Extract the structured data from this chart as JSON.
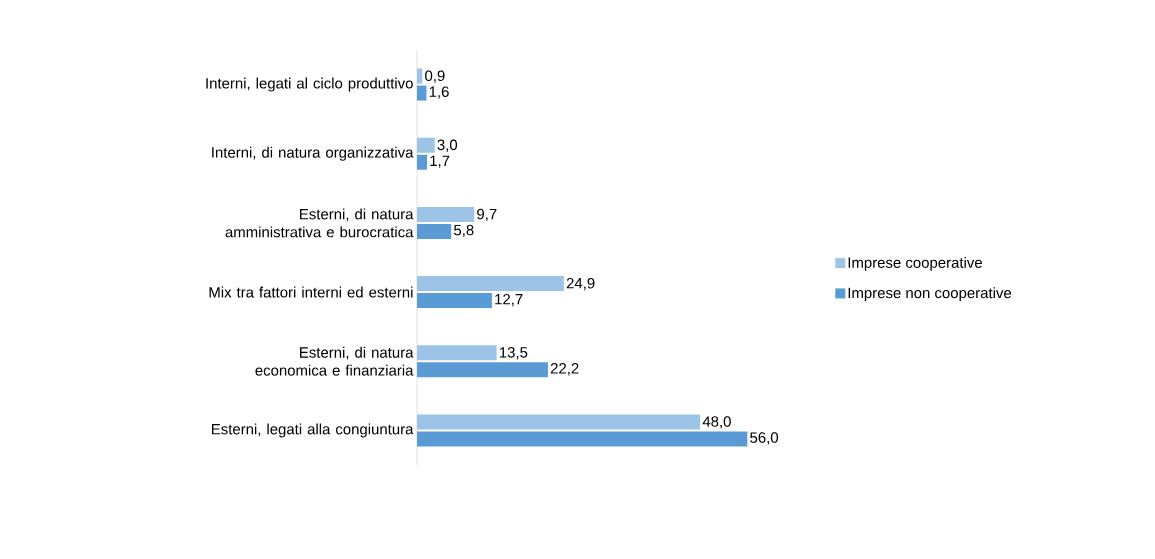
{
  "chart_data": {
    "type": "bar",
    "orientation": "horizontal",
    "legend": "right",
    "categories": [
      "Interni, legati al ciclo produttivo",
      "Interni, di natura organizzativa",
      "Esterni, di natura amministrativa e burocratica",
      "Mix tra fattori interni ed esterni",
      "Esterni, di natura economica e finanziaria",
      "Esterni, legati alla congiuntura"
    ],
    "series": [
      {
        "name": "Imprese cooperative",
        "color": "#9dc3e6",
        "values": [
          0.9,
          3.0,
          9.7,
          24.9,
          13.5,
          48.0
        ],
        "value_labels": [
          "0,9",
          "3,0",
          "9,7",
          "24,9",
          "13,5",
          "48,0"
        ]
      },
      {
        "name": "Imprese non cooperative",
        "color": "#5b9bd5",
        "values": [
          1.6,
          1.7,
          5.8,
          12.7,
          22.2,
          56.0
        ],
        "value_labels": [
          "1,6",
          "1,7",
          "5,8",
          "12,7",
          "22,2",
          "56,0"
        ]
      }
    ]
  }
}
